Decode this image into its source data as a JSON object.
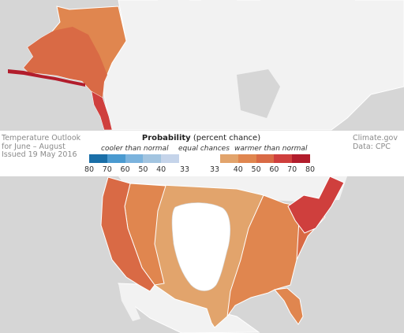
{
  "outlook": {
    "title": "Temperature Outlook",
    "period": "for June – August",
    "issued": "Issued 19 May 2016"
  },
  "credit": {
    "site": "Climate.gov",
    "data": "Data: CPC"
  },
  "legend": {
    "title": "Probability",
    "subtitle": "(percent chance)",
    "categories": {
      "cooler": "cooler than normal",
      "equal": "equal chances",
      "warmer": "warmer than normal"
    },
    "cooler_ticks": [
      "80",
      "70",
      "60",
      "50",
      "40",
      "33"
    ],
    "warmer_ticks": [
      "33",
      "40",
      "50",
      "60",
      "70",
      "80"
    ],
    "cooler_colors": [
      "#1a6fa8",
      "#4a9ad0",
      "#7bb3dd",
      "#a2c4e0",
      "#c5d4ea"
    ],
    "equal_color": "#ffffff",
    "warmer_colors": [
      "#e2a46c",
      "#e0864f",
      "#d96a45",
      "#cf3f3d",
      "#b21d2c"
    ]
  },
  "map_colors": {
    "ocean": "#d6d6d6",
    "land": "#f2f2f2",
    "border": "#ffffff",
    "warm_33_40": "#e2a46c",
    "warm_40_50": "#e0864f",
    "warm_50_60": "#d96a45",
    "warm_60_70": "#cf3f3d",
    "warm_70_80": "#b21d2c",
    "equal_chances": "#ffffff"
  }
}
